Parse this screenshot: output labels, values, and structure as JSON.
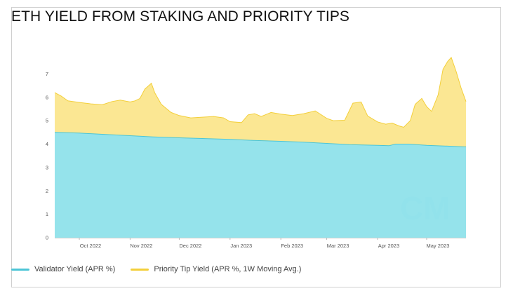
{
  "colors": {
    "validator": "#8fe1ea",
    "validator_line": "#4cc5d6",
    "tip": "#fbe58a",
    "tip_line": "#f3cf3a"
  },
  "watermark": "CM",
  "chart_data": {
    "type": "area",
    "title": "ETH YIELD FROM STAKING AND PRIORITY TIPS",
    "xlabel": "",
    "ylabel": "",
    "ylim": [
      0,
      8
    ],
    "y_ticks": [
      0,
      1,
      2,
      3,
      4,
      5,
      6,
      7
    ],
    "x_ticks": [
      {
        "date": "2022-10-01",
        "label": "Oct 2022"
      },
      {
        "date": "2022-11-01",
        "label": "Nov 2022"
      },
      {
        "date": "2022-12-01",
        "label": "Dec 2022"
      },
      {
        "date": "2023-01-01",
        "label": "Jan 2023"
      },
      {
        "date": "2023-02-01",
        "label": "Feb 2023"
      },
      {
        "date": "2023-03-01",
        "label": "Mar 2023"
      },
      {
        "date": "2023-04-01",
        "label": "Apr 2023"
      },
      {
        "date": "2023-05-01",
        "label": "May 2023"
      }
    ],
    "x_range": [
      "2022-09-16",
      "2023-05-25"
    ],
    "stacked": true,
    "legend_position": "bottom-left",
    "grid": false,
    "series": [
      {
        "name": "Validator Yield (APR %)",
        "points": [
          [
            "2022-09-16",
            4.5
          ],
          [
            "2022-10-01",
            4.47
          ],
          [
            "2022-10-15",
            4.42
          ],
          [
            "2022-11-01",
            4.36
          ],
          [
            "2022-11-15",
            4.31
          ],
          [
            "2022-12-01",
            4.27
          ],
          [
            "2022-12-15",
            4.24
          ],
          [
            "2023-01-01",
            4.2
          ],
          [
            "2023-01-15",
            4.16
          ],
          [
            "2023-02-01",
            4.12
          ],
          [
            "2023-02-15",
            4.08
          ],
          [
            "2023-03-01",
            4.03
          ],
          [
            "2023-03-15",
            3.98
          ],
          [
            "2023-04-01",
            3.95
          ],
          [
            "2023-04-08",
            3.93
          ],
          [
            "2023-04-12",
            4.0
          ],
          [
            "2023-04-20",
            4.0
          ],
          [
            "2023-05-01",
            3.95
          ],
          [
            "2023-05-15",
            3.91
          ],
          [
            "2023-05-25",
            3.88
          ]
        ]
      },
      {
        "name": "Priority Tip Yield (APR %, 1W Moving Avg.)",
        "stacked_total": [
          [
            "2022-09-16",
            6.2
          ],
          [
            "2022-09-20",
            6.05
          ],
          [
            "2022-09-24",
            5.85
          ],
          [
            "2022-10-01",
            5.78
          ],
          [
            "2022-10-08",
            5.72
          ],
          [
            "2022-10-15",
            5.68
          ],
          [
            "2022-10-21",
            5.82
          ],
          [
            "2022-10-26",
            5.88
          ],
          [
            "2022-11-01",
            5.8
          ],
          [
            "2022-11-04",
            5.85
          ],
          [
            "2022-11-07",
            5.95
          ],
          [
            "2022-11-10",
            6.35
          ],
          [
            "2022-11-14",
            6.6
          ],
          [
            "2022-11-16",
            6.2
          ],
          [
            "2022-11-20",
            5.7
          ],
          [
            "2022-11-26",
            5.35
          ],
          [
            "2022-12-01",
            5.22
          ],
          [
            "2022-12-08",
            5.12
          ],
          [
            "2022-12-15",
            5.15
          ],
          [
            "2022-12-22",
            5.18
          ],
          [
            "2022-12-28",
            5.12
          ],
          [
            "2023-01-01",
            4.96
          ],
          [
            "2023-01-08",
            4.92
          ],
          [
            "2023-01-12",
            5.25
          ],
          [
            "2023-01-16",
            5.3
          ],
          [
            "2023-01-20",
            5.18
          ],
          [
            "2023-01-26",
            5.35
          ],
          [
            "2023-02-01",
            5.28
          ],
          [
            "2023-02-08",
            5.22
          ],
          [
            "2023-02-15",
            5.3
          ],
          [
            "2023-02-22",
            5.42
          ],
          [
            "2023-03-01",
            5.1
          ],
          [
            "2023-03-05",
            5.0
          ],
          [
            "2023-03-12",
            5.02
          ],
          [
            "2023-03-17",
            5.75
          ],
          [
            "2023-03-22",
            5.8
          ],
          [
            "2023-03-26",
            5.2
          ],
          [
            "2023-04-01",
            4.95
          ],
          [
            "2023-04-06",
            4.85
          ],
          [
            "2023-04-10",
            4.9
          ],
          [
            "2023-04-14",
            4.78
          ],
          [
            "2023-04-17",
            4.72
          ],
          [
            "2023-04-21",
            5.0
          ],
          [
            "2023-04-24",
            5.7
          ],
          [
            "2023-04-28",
            5.95
          ],
          [
            "2023-05-01",
            5.6
          ],
          [
            "2023-05-04",
            5.4
          ],
          [
            "2023-05-08",
            6.1
          ],
          [
            "2023-05-11",
            7.2
          ],
          [
            "2023-05-14",
            7.55
          ],
          [
            "2023-05-16",
            7.7
          ],
          [
            "2023-05-19",
            7.1
          ],
          [
            "2023-05-22",
            6.4
          ],
          [
            "2023-05-25",
            5.82
          ]
        ]
      }
    ]
  }
}
